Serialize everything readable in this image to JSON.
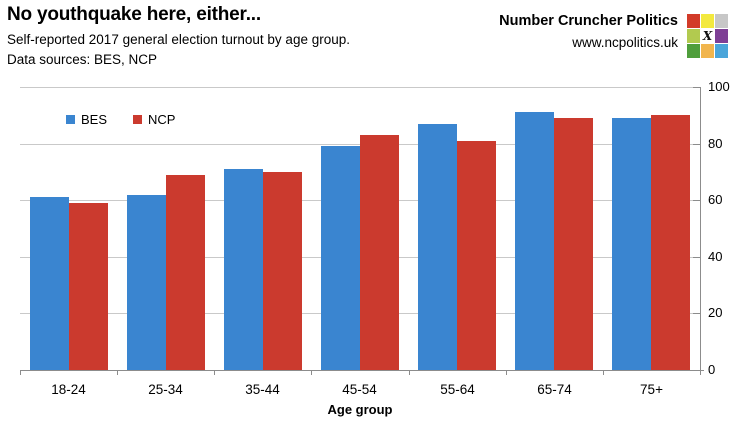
{
  "header": {
    "title": "No youthquake here, either...",
    "subtitle": "Self-reported 2017 general election turnout by age group.",
    "datasources": "Data sources: BES, NCP",
    "brand_name": "Number Cruncher Politics",
    "brand_url": "www.ncpolitics.uk",
    "logo": {
      "grid_colors": [
        "#d23b29",
        "#f3e93e",
        "#c7c7c7",
        "#b2ca4f",
        "#ffffff",
        "#7e3f95",
        "#4f9e3c",
        "#f1b54d",
        "#4aa5da"
      ],
      "center_glyph": "X"
    }
  },
  "chart_data": {
    "type": "bar",
    "title": "No youthquake here, either...",
    "subtitle": "Self-reported 2017 general election turnout by age group.",
    "categories": [
      "18-24",
      "25-34",
      "35-44",
      "45-54",
      "55-64",
      "65-74",
      "75+"
    ],
    "series": [
      {
        "name": "BES",
        "color": "#3a85d0",
        "values": [
          61,
          62,
          71,
          79,
          87,
          91,
          89
        ]
      },
      {
        "name": "NCP",
        "color": "#cb3a2e",
        "values": [
          59,
          69,
          70,
          83,
          81,
          89,
          90
        ]
      }
    ],
    "xlabel": "Age group",
    "ylabel": "",
    "ylim": [
      0,
      100
    ],
    "yticks": [
      0,
      20,
      40,
      60,
      80,
      100
    ],
    "grid": true,
    "legend_position": "top-left",
    "y_axis_side": "right",
    "gridline_color": "#c9c9c9",
    "axis_color": "#8c8c8c"
  }
}
